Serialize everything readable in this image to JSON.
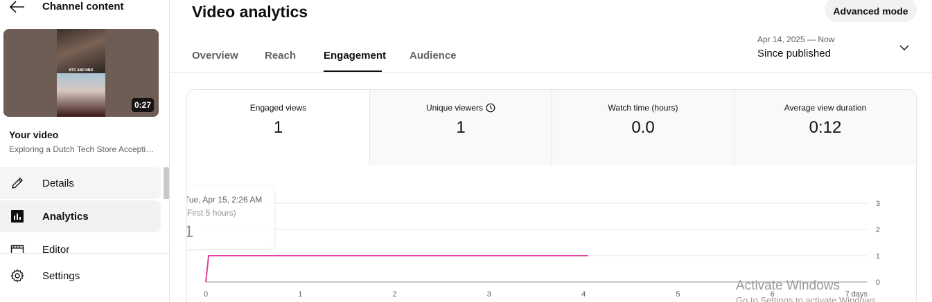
{
  "sidebar": {
    "title": "Channel content",
    "video": {
      "duration": "0:27",
      "thumb_caption": "BTC AND HBO",
      "label": "Your video",
      "subtitle": "Exploring a Dutch Tech Store Accepting Bitcoin"
    },
    "items": [
      {
        "label": "Details",
        "icon": "pencil-icon"
      },
      {
        "label": "Analytics",
        "icon": "analytics-icon",
        "active": true
      },
      {
        "label": "Editor",
        "icon": "editor-icon"
      },
      {
        "label": "Settings",
        "icon": "gear-icon"
      }
    ]
  },
  "header": {
    "title": "Video analytics",
    "advanced_button": "Advanced mode"
  },
  "tabs": [
    {
      "label": "Overview"
    },
    {
      "label": "Reach"
    },
    {
      "label": "Engagement",
      "active": true
    },
    {
      "label": "Audience"
    }
  ],
  "date_range": {
    "range": "Apr 14, 2025 — Now",
    "label": "Since published"
  },
  "metrics": [
    {
      "label": "Engaged views",
      "value": "1"
    },
    {
      "label": "Unique viewers",
      "value": "1",
      "icon": "clock-icon"
    },
    {
      "label": "Watch time (hours)",
      "value": "0.0"
    },
    {
      "label": "Average view duration",
      "value": "0:12"
    }
  ],
  "tooltip": {
    "date": "Tue, Apr 15, 2:26 AM",
    "note": "(First 5 hours)",
    "value": "1"
  },
  "chart_data": {
    "type": "line",
    "x_ticks": [
      "0",
      "1",
      "2",
      "3",
      "4",
      "5",
      "6",
      "7 days"
    ],
    "y_ticks": [
      "0",
      "1",
      "2",
      "3"
    ],
    "xlim": [
      0,
      7
    ],
    "ylim": [
      0,
      3
    ],
    "grid": true,
    "series": [
      {
        "color": "#e040a0",
        "points": [
          [
            0,
            0
          ],
          [
            0.03,
            1
          ],
          [
            4.05,
            1
          ]
        ]
      }
    ]
  },
  "watermark": {
    "line1": "Activate Windows",
    "line2": "Go to Settings to activate Windows."
  }
}
